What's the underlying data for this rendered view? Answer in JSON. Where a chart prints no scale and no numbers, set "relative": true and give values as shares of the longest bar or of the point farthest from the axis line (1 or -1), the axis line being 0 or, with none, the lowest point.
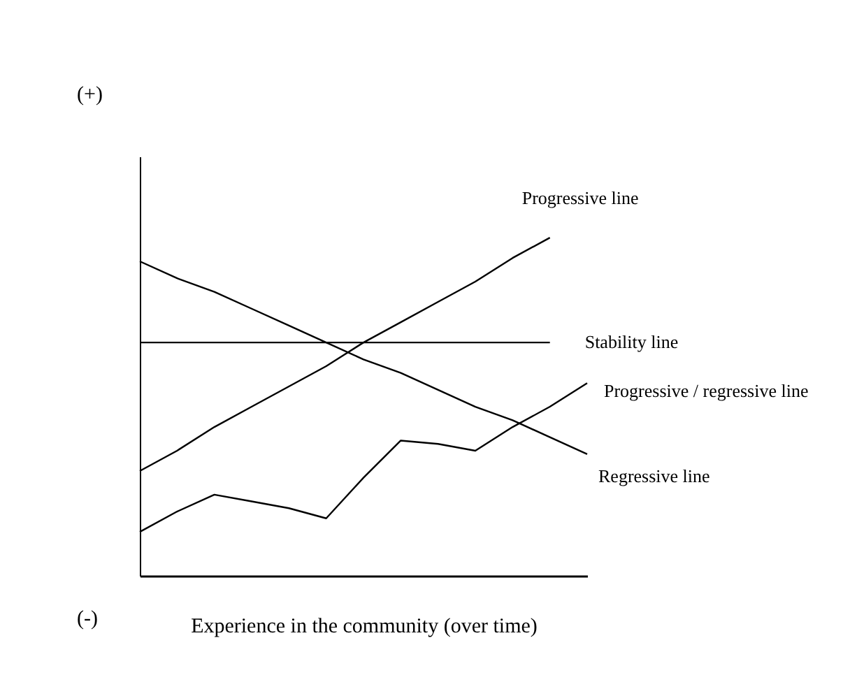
{
  "chart_data": {
    "type": "line",
    "relative": true,
    "xlabel": "Experience in the community (over time)",
    "annotations": [
      "(+)",
      "(-)"
    ],
    "grid": false,
    "tick_labels": false,
    "marker": "none",
    "line_style": "solid",
    "categories": [
      null,
      null,
      null,
      null,
      null,
      null,
      null,
      null,
      null,
      null,
      null,
      null,
      null
    ],
    "series": [
      {
        "name": "Progressive line",
        "color": "#000000",
        "values": [
          0.31,
          0.37,
          0.44,
          0.5,
          0.56,
          0.62,
          0.69,
          0.75,
          0.81,
          0.87,
          0.94,
          1.0,
          null
        ]
      },
      {
        "name": "Stability line",
        "color": "#000000",
        "values": [
          0.69,
          0.69,
          0.69,
          0.69,
          0.69,
          0.69,
          0.69,
          0.69,
          0.69,
          0.69,
          0.69,
          0.69,
          null
        ]
      },
      {
        "name": "Progressive / regressive line",
        "color": "#000000",
        "values": [
          0.13,
          0.19,
          0.24,
          0.22,
          0.2,
          0.17,
          0.29,
          0.4,
          0.39,
          0.37,
          0.44,
          0.5,
          0.57
        ]
      },
      {
        "name": "Regressive line",
        "color": "#000000",
        "values": [
          0.93,
          0.88,
          0.84,
          0.79,
          0.74,
          0.69,
          0.64,
          0.6,
          0.55,
          0.5,
          0.46,
          0.41,
          0.36
        ]
      }
    ]
  }
}
